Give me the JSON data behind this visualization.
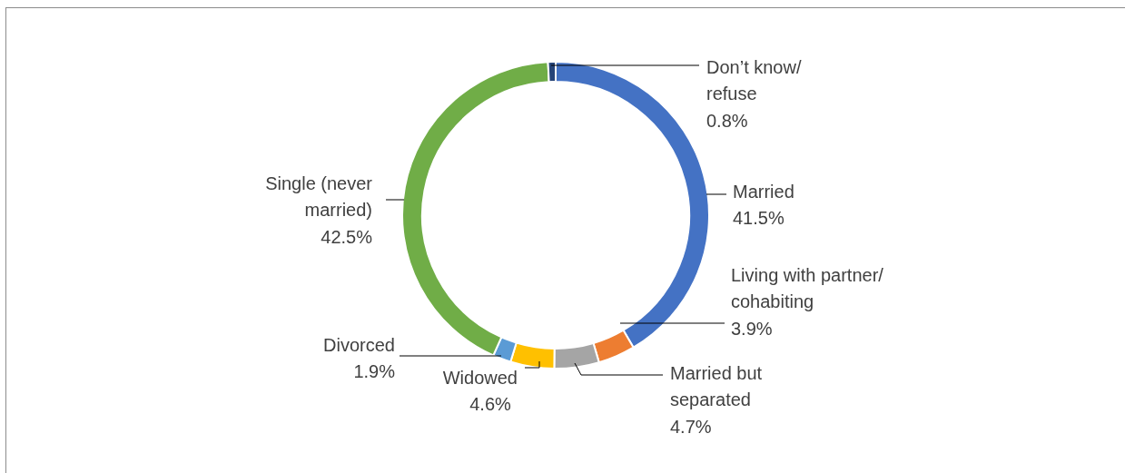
{
  "chart_data": {
    "type": "donut",
    "categories": [
      "Married",
      "Living with partner/ cohabiting",
      "Married but separated",
      "Widowed",
      "Divorced",
      "Single (never married)",
      "Don’t know/ refuse"
    ],
    "values": [
      41.5,
      3.9,
      4.7,
      4.6,
      1.9,
      42.5,
      0.8
    ],
    "value_labels": [
      "41.5%",
      "3.9%",
      "4.7%",
      "4.6%",
      "1.9%",
      "42.5%",
      "0.8%"
    ],
    "colors": [
      "#4472c4",
      "#ed7d31",
      "#a5a5a5",
      "#ffc000",
      "#5b9bd5",
      "#70ad47",
      "#264478"
    ],
    "legend": false
  }
}
